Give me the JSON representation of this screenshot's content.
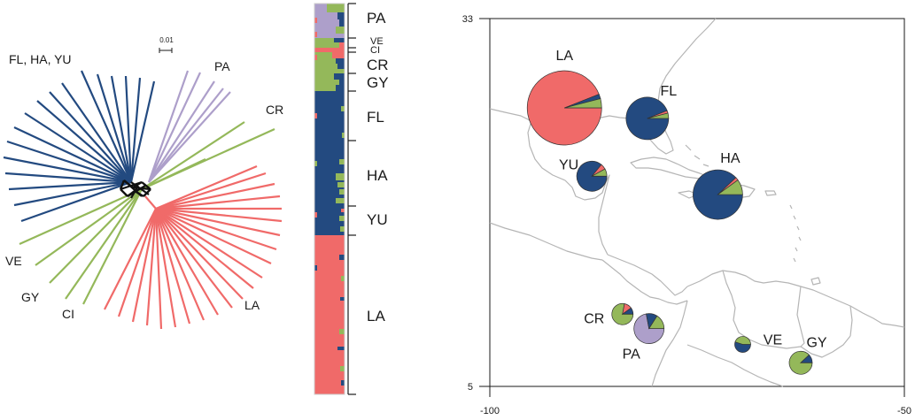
{
  "colors": {
    "FL_HA_YU": "#234a80",
    "PA": "#ad9fca",
    "green": "#94b85a",
    "LA": "#f06a69",
    "tree_core": "#111111",
    "map_line": "#b5b5b5"
  },
  "tree": {
    "scale_label": "0.01",
    "labels": {
      "fl_ha_yu": "FL, HA, YU",
      "pa": "PA",
      "cr": "CR",
      "ve": "VE",
      "gy": "GY",
      "ci": "CI",
      "la": "LA"
    }
  },
  "bar_plot": {
    "labels": {
      "pa": "PA",
      "ve": "VE",
      "ci": "CI",
      "cr": "CR",
      "gy": "GY",
      "fl": "FL",
      "ha": "HA",
      "yu": "YU",
      "la": "LA"
    }
  },
  "map": {
    "y_top_label": "33",
    "y_bottom_label": "5",
    "x_left_label": "-100",
    "x_right_label": "-50",
    "pies": [
      {
        "label": "LA",
        "lon": -91.0,
        "lat": 26.2,
        "shares": {
          "LA": 0.94,
          "FL_HA_YU": 0.02,
          "green": 0.04
        }
      },
      {
        "label": "FL",
        "lon": -81.0,
        "lat": 25.4,
        "shares": {
          "FL_HA_YU": 0.94,
          "green": 0.04,
          "LA": 0.02
        }
      },
      {
        "label": "HA",
        "lon": -72.5,
        "lat": 19.6,
        "shares": {
          "FL_HA_YU": 0.88,
          "green": 0.1,
          "LA": 0.02
        }
      },
      {
        "label": "YU",
        "lon": -87.7,
        "lat": 21.0,
        "shares": {
          "FL_HA_YU": 0.86,
          "green": 0.08,
          "LA": 0.06
        }
      },
      {
        "label": "CR",
        "lon": -84.0,
        "lat": 10.5,
        "shares": {
          "green": 0.78,
          "LA": 0.12,
          "FL_HA_YU": 0.1
        }
      },
      {
        "label": "PA",
        "lon": -80.8,
        "lat": 9.4,
        "shares": {
          "PA": 0.72,
          "green": 0.16,
          "FL_HA_YU": 0.12
        }
      },
      {
        "label": "VE",
        "lon": -69.5,
        "lat": 8.2,
        "shares": {
          "FL_HA_YU": 0.55,
          "green": 0.45
        }
      },
      {
        "label": "GY",
        "lon": -62.5,
        "lat": 6.8,
        "shares": {
          "green": 0.88,
          "FL_HA_YU": 0.12
        }
      }
    ]
  }
}
